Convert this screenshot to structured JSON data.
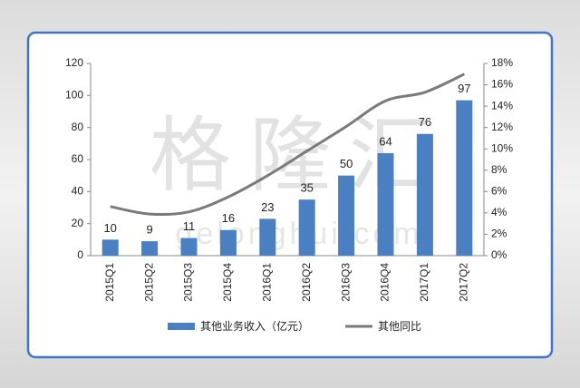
{
  "chart_data": {
    "type": "bar-line",
    "watermark": "格隆汇",
    "watermark_url": "gelonghui.com",
    "categories": [
      "2015Q1",
      "2015Q2",
      "2015Q3",
      "2015Q4",
      "2016Q1",
      "2016Q2",
      "2016Q3",
      "2016Q4",
      "2017Q1",
      "2017Q2"
    ],
    "series": [
      {
        "name": "其他业务收入（亿元）",
        "type": "bar",
        "color": "#4a7fc1",
        "values": [
          10,
          9,
          11,
          16,
          23,
          35,
          50,
          64,
          76,
          97
        ]
      },
      {
        "name": "其他同比",
        "type": "line",
        "axis": "y2",
        "color": "#7a7a7a",
        "values": [
          4.6,
          3.9,
          4.1,
          5.5,
          7.5,
          9.8,
          12.1,
          14.5,
          15.3,
          17.0
        ]
      }
    ],
    "ylim": [
      0,
      120
    ],
    "yticks": [
      0,
      20,
      40,
      60,
      80,
      100,
      120
    ],
    "y2lim": [
      0,
      18
    ],
    "y2ticks": [
      {
        "value": 0,
        "label": "0%"
      },
      {
        "value": 2,
        "label": "2%"
      },
      {
        "value": 4,
        "label": "4%"
      },
      {
        "value": 6,
        "label": "6%"
      },
      {
        "value": 8,
        "label": "8%"
      },
      {
        "value": 10,
        "label": "10%"
      },
      {
        "value": 12,
        "label": "12%"
      },
      {
        "value": 14,
        "label": "14%"
      },
      {
        "value": 16,
        "label": "16%"
      },
      {
        "value": 18,
        "label": "18%"
      }
    ]
  }
}
